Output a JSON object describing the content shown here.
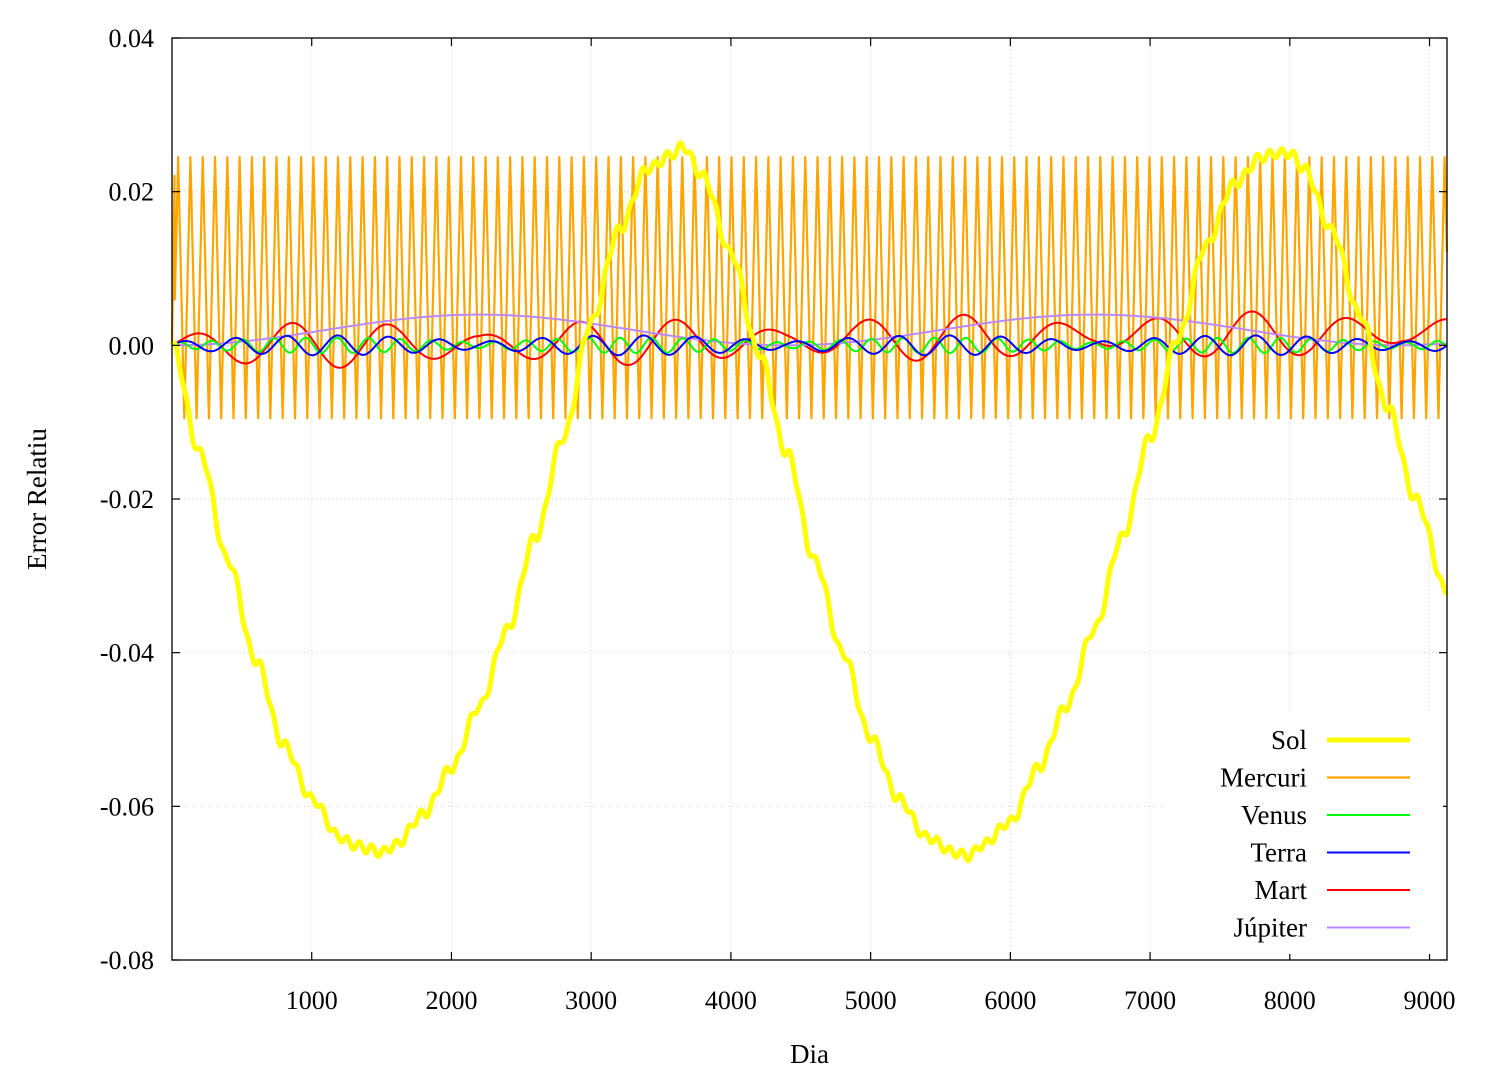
{
  "chart_data": {
    "type": "line",
    "xlabel": "Dia",
    "ylabel": "Error Relatiu",
    "xlim": [
      0,
      9125
    ],
    "ylim": [
      -0.08,
      0.04
    ],
    "xticks": [
      1000,
      2000,
      3000,
      4000,
      5000,
      6000,
      7000,
      8000,
      9000
    ],
    "xtick_labels": [
      "1000",
      "2000",
      "3000",
      "4000",
      "5000",
      "6000",
      "7000",
      "8000",
      "9000"
    ],
    "yticks": [
      0.04,
      0.02,
      0.0,
      -0.02,
      -0.04,
      -0.06,
      -0.08
    ],
    "ytick_labels": [
      "0.04",
      "0.02",
      "0.00",
      "-0.02",
      "-0.04",
      "-0.06",
      "-0.08"
    ],
    "grid": true,
    "legend_position": "bottom-right",
    "series": [
      {
        "name": "Sol",
        "color": "#ffff00",
        "x": [
          0,
          200,
          400,
          600,
          800,
          1000,
          1200,
          1300,
          1400,
          1500,
          1600,
          1800,
          2000,
          2200,
          2400,
          2600,
          2800,
          3000,
          3200,
          3400,
          3600,
          3650,
          3800,
          4000,
          4200,
          4400,
          4600,
          4800,
          5000,
          5200,
          5400,
          5600,
          5700,
          5800,
          6000,
          6200,
          6400,
          6600,
          6800,
          7000,
          7200,
          7400,
          7600,
          7800,
          7900,
          8000,
          8100,
          8300,
          8500,
          8700,
          8900,
          9125
        ],
        "values": [
          0.0,
          -0.014,
          -0.028,
          -0.041,
          -0.052,
          -0.059,
          -0.064,
          -0.065,
          -0.0655,
          -0.066,
          -0.065,
          -0.061,
          -0.055,
          -0.047,
          -0.037,
          -0.025,
          -0.012,
          0.003,
          0.015,
          0.023,
          0.025,
          0.026,
          0.022,
          0.012,
          -0.001,
          -0.014,
          -0.028,
          -0.04,
          -0.051,
          -0.059,
          -0.064,
          -0.066,
          -0.0665,
          -0.065,
          -0.062,
          -0.055,
          -0.047,
          -0.037,
          -0.025,
          -0.012,
          0.001,
          0.013,
          0.021,
          0.0245,
          0.025,
          0.025,
          0.023,
          0.015,
          0.004,
          -0.008,
          -0.02,
          -0.032
        ]
      },
      {
        "name": "Mercuri",
        "color": "#ffa500",
        "period": 88,
        "min": -0.0095,
        "max": 0.0245,
        "x": [
          0,
          9125
        ],
        "values": [
          0.0,
          0.01
        ]
      },
      {
        "name": "Venus",
        "color": "#00ff00",
        "period": 225,
        "amplitude": 0.001,
        "x": [
          0,
          9125
        ],
        "values": [
          0.0,
          0.0
        ]
      },
      {
        "name": "Terra",
        "color": "#0000ff",
        "period": 365,
        "amplitude": 0.0013,
        "x": [
          0,
          9125
        ],
        "values": [
          0.0,
          0.0
        ]
      },
      {
        "name": "Mart",
        "color": "#ff0000",
        "period": 687,
        "amplitude": 0.003,
        "x": [
          0,
          9125
        ],
        "values": [
          0.0,
          0.0015
        ]
      },
      {
        "name": "Júpiter",
        "color": "#bb88ff",
        "period": 4332,
        "amplitude": 0.004,
        "x": [
          0,
          2200,
          4400,
          6600,
          8800,
          9125
        ],
        "values": [
          0.0,
          0.004,
          0.0,
          0.004,
          0.0,
          0.0002
        ]
      }
    ]
  }
}
